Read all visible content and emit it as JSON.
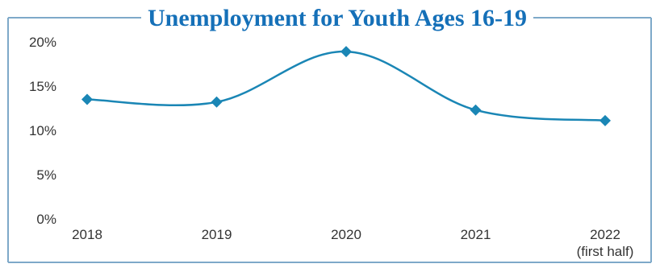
{
  "colors": {
    "border": "#7ea9c9",
    "title": "#1570b8",
    "line": "#1a86b5",
    "marker": "#1a86b5",
    "text": "#333333"
  },
  "chart_data": {
    "type": "line",
    "title": "Unemployment for Youth Ages 16-19",
    "xlabel": "",
    "ylabel": "",
    "categories": [
      "2018",
      "2019",
      "2020",
      "2021",
      "2022"
    ],
    "category_sublabels": [
      "",
      "",
      "",
      "",
      "(first half)"
    ],
    "series": [
      {
        "values": [
          13.5,
          13.2,
          18.9,
          12.3,
          11.1
        ]
      }
    ],
    "ylim": [
      0,
      20
    ],
    "yticks": [
      "0%",
      "5%",
      "10%",
      "15%",
      "20%"
    ],
    "ytick_values": [
      0,
      5,
      10,
      15,
      20
    ],
    "grid": false,
    "marker": "diamond",
    "smooth": true
  }
}
